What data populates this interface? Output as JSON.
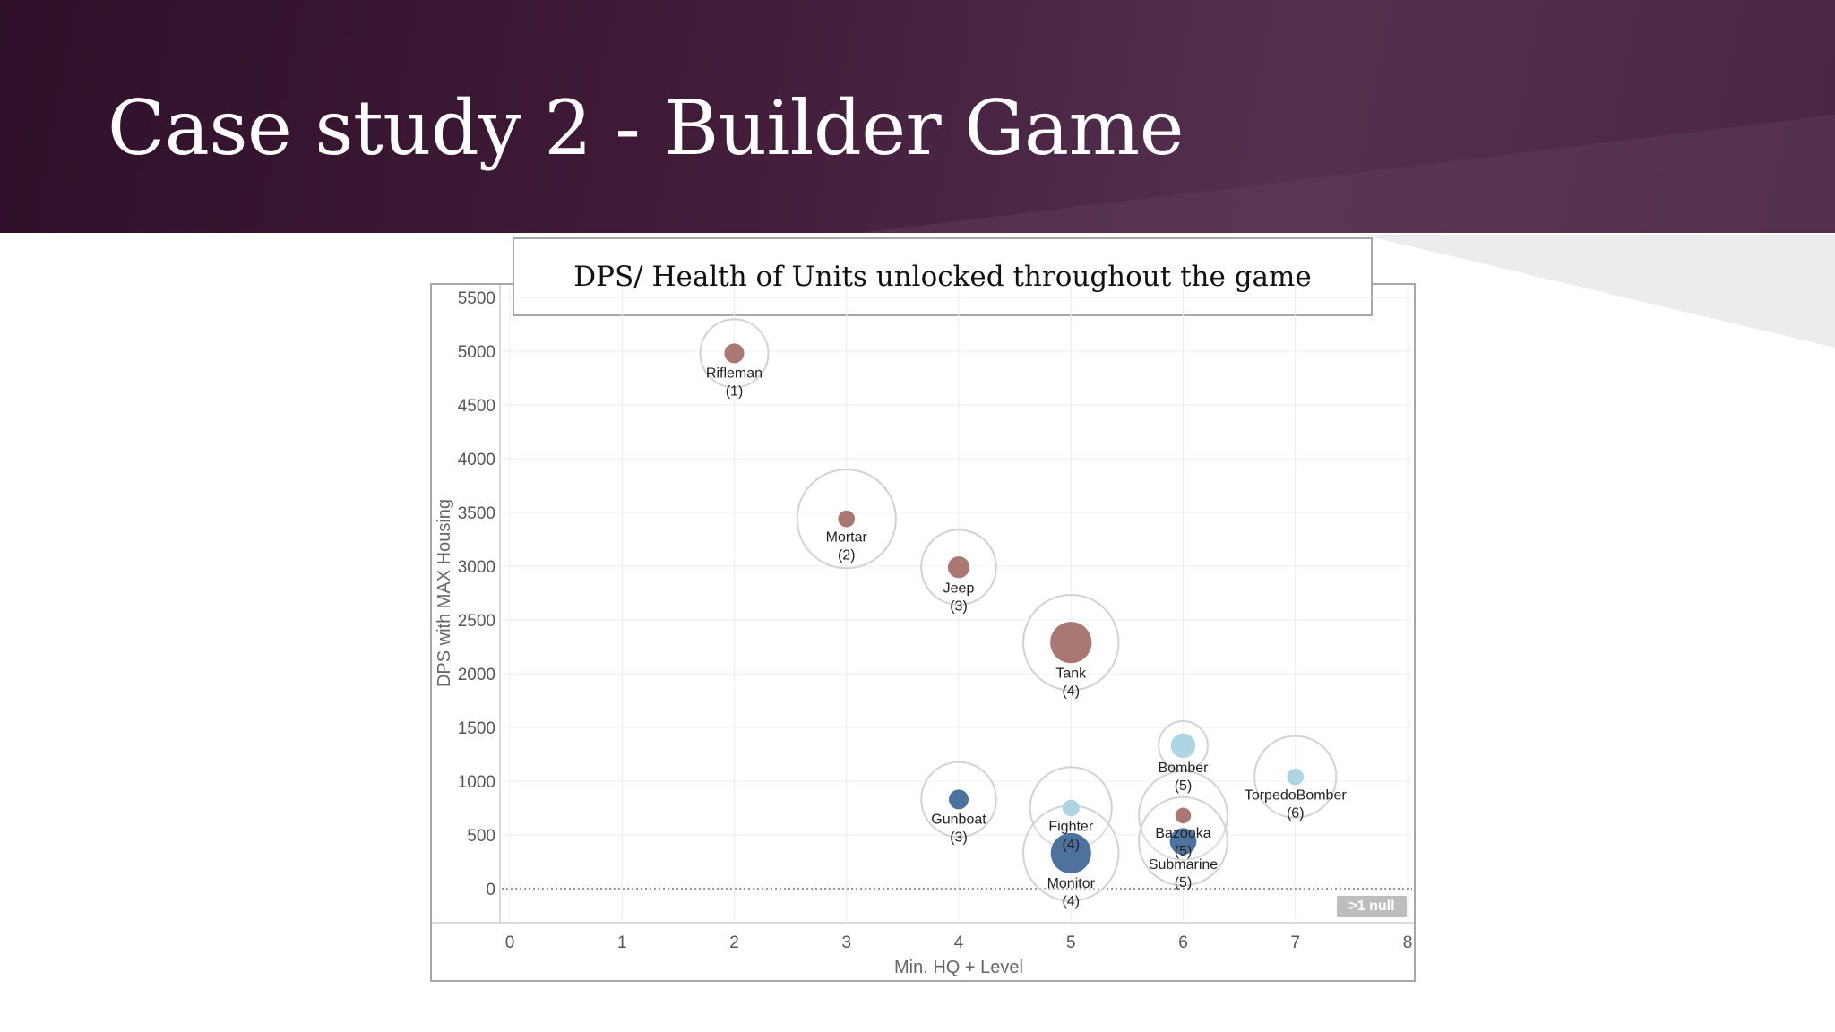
{
  "slide": {
    "title": "Case study 2 - Builder Game"
  },
  "chart_data": {
    "type": "scatter",
    "title": "DPS/ Health of Units unlocked throughout the game",
    "xlabel": "Min. HQ + Level",
    "ylabel": "DPS with MAX Housing",
    "xlim": [
      0,
      8
    ],
    "ylim": [
      0,
      5500
    ],
    "x_ticks": [
      0,
      1,
      2,
      3,
      4,
      5,
      6,
      7,
      8
    ],
    "y_ticks": [
      0,
      500,
      1000,
      1500,
      2000,
      2500,
      3000,
      3500,
      4000,
      4500,
      5000,
      5500
    ],
    "grid": true,
    "null_note": ">1 null",
    "colors": {
      "brown": "#a4716a",
      "navy": "#456a99",
      "lightblue": "#a9d3e0",
      "ring": "#d2d2d2"
    },
    "points": [
      {
        "name": "Rifleman",
        "level_label": "(1)",
        "x": 2,
        "y": 4980,
        "color": "brown",
        "dot_size": 1.0,
        "ring_size": 1.0
      },
      {
        "name": "Mortar",
        "level_label": "(2)",
        "x": 3,
        "y": 3440,
        "color": "brown",
        "dot_size": 0.85,
        "ring_size": 1.45
      },
      {
        "name": "Jeep",
        "level_label": "(3)",
        "x": 4,
        "y": 2990,
        "color": "brown",
        "dot_size": 1.1,
        "ring_size": 1.1
      },
      {
        "name": "Tank",
        "level_label": "(4)",
        "x": 5,
        "y": 2290,
        "color": "brown",
        "dot_size": 2.1,
        "ring_size": 1.4
      },
      {
        "name": "Bomber",
        "level_label": "(5)",
        "x": 6,
        "y": 1330,
        "color": "lightblue",
        "dot_size": 1.25,
        "ring_size": 0.72
      },
      {
        "name": "TorpedoBomber",
        "level_label": "(6)",
        "x": 7,
        "y": 1040,
        "color": "lightblue",
        "dot_size": 0.85,
        "ring_size": 1.2
      },
      {
        "name": "Gunboat",
        "level_label": "(3)",
        "x": 4,
        "y": 830,
        "color": "navy",
        "dot_size": 1.0,
        "ring_size": 1.1
      },
      {
        "name": "Fighter",
        "level_label": "(4)",
        "x": 5,
        "y": 750,
        "color": "lightblue",
        "dot_size": 0.85,
        "ring_size": 1.2
      },
      {
        "name": "Bazooka",
        "level_label": "(5)",
        "x": 6,
        "y": 680,
        "color": "brown",
        "dot_size": 0.8,
        "ring_size": 1.3
      },
      {
        "name": "Submarine",
        "level_label": "(5)",
        "x": 6,
        "y": 440,
        "color": "navy",
        "dot_size": 1.35,
        "ring_size": 1.3
      },
      {
        "name": "Monitor",
        "level_label": "(4)",
        "x": 5,
        "y": 330,
        "color": "navy",
        "dot_size": 2.05,
        "ring_size": 1.4
      }
    ]
  }
}
